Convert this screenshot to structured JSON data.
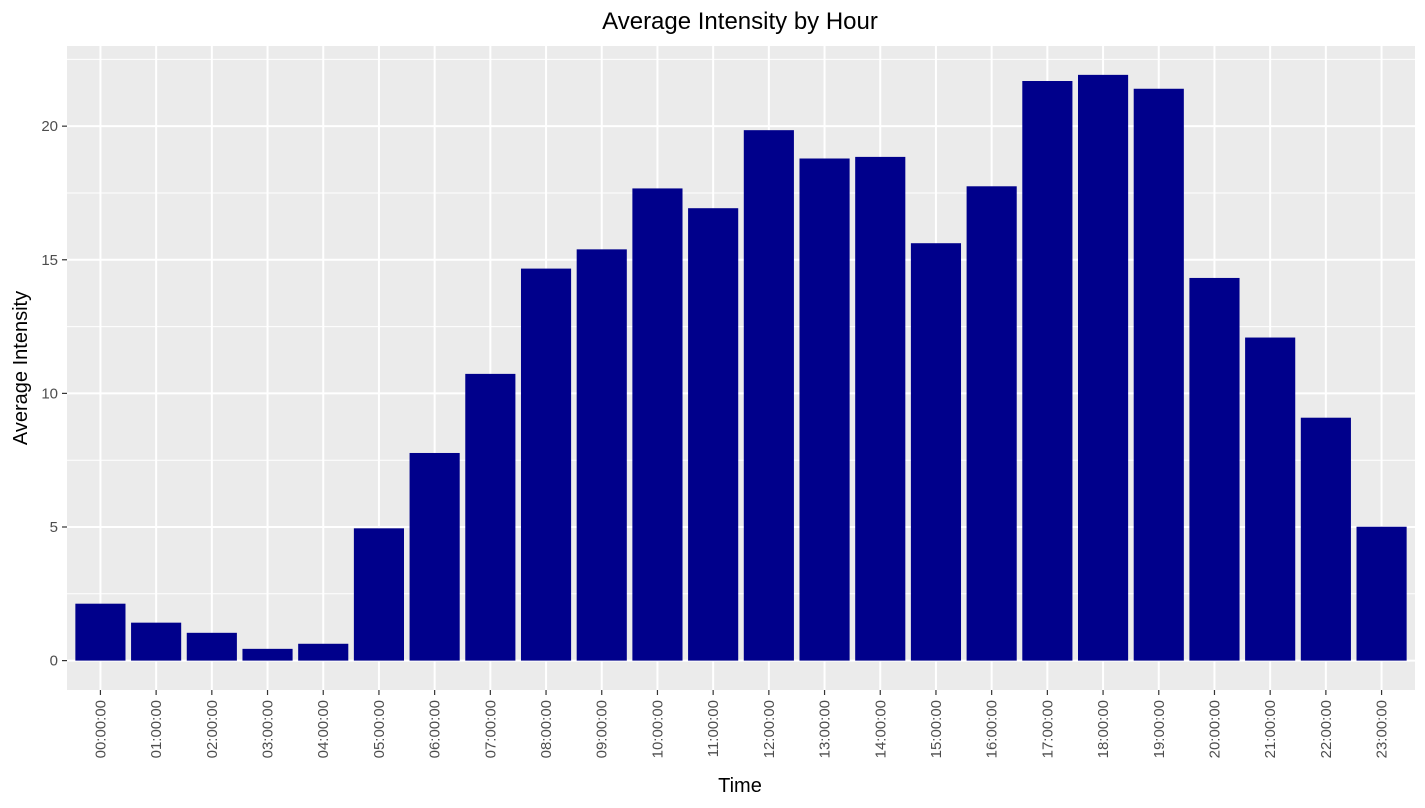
{
  "chart_data": {
    "type": "bar",
    "title": "Average Intensity by Hour",
    "xlabel": "Time",
    "ylabel": "Average Intensity",
    "categories": [
      "00:00:00",
      "01:00:00",
      "02:00:00",
      "03:00:00",
      "04:00:00",
      "05:00:00",
      "06:00:00",
      "07:00:00",
      "08:00:00",
      "09:00:00",
      "10:00:00",
      "11:00:00",
      "12:00:00",
      "13:00:00",
      "14:00:00",
      "15:00:00",
      "16:00:00",
      "17:00:00",
      "18:00:00",
      "19:00:00",
      "20:00:00",
      "21:00:00",
      "22:00:00",
      "23:00:00"
    ],
    "values": [
      2.13,
      1.42,
      1.04,
      0.44,
      0.63,
      4.95,
      7.77,
      10.73,
      14.67,
      15.39,
      17.67,
      16.93,
      19.85,
      18.79,
      18.85,
      15.62,
      17.75,
      21.69,
      21.92,
      21.4,
      14.32,
      12.09,
      9.09,
      5.01
    ],
    "ylim": [
      -1.1,
      23.0
    ],
    "yticks": [
      0,
      5,
      10,
      15,
      20
    ],
    "ytick_labels": [
      "0",
      "5",
      "10",
      "15",
      "20"
    ],
    "grid": true,
    "colors": {
      "bar": "#00008b",
      "panel": "#ebebeb",
      "grid": "#ffffff"
    }
  }
}
